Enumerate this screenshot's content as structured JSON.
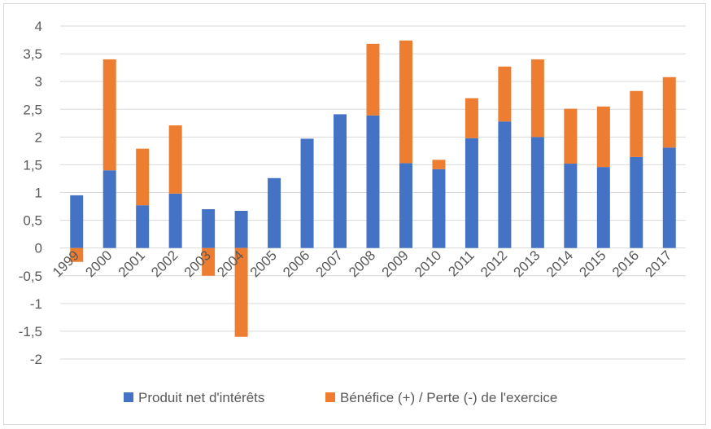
{
  "chart_data": {
    "type": "bar",
    "stacked": true,
    "title": "",
    "xlabel": "",
    "ylabel": "",
    "categories": [
      "1999",
      "2000",
      "2001",
      "2002",
      "2003",
      "2004",
      "2005",
      "2006",
      "2007",
      "2008",
      "2009",
      "2010",
      "2011",
      "2012",
      "2013",
      "2014",
      "2015",
      "2016",
      "2017"
    ],
    "series": [
      {
        "name": "Produit net d'intérêts",
        "color": "#4472c4",
        "values": [
          0.95,
          1.4,
          0.77,
          0.98,
          0.7,
          0.67,
          1.26,
          1.97,
          2.41,
          2.39,
          1.53,
          1.42,
          1.98,
          2.28,
          2.0,
          1.52,
          1.46,
          1.64,
          1.81
        ]
      },
      {
        "name": "Bénéfice (+) / Perte (-) de l'exercice",
        "color": "#ed7d31",
        "values": [
          -0.25,
          2.0,
          1.02,
          1.23,
          -0.5,
          -1.6,
          0,
          0,
          0,
          1.29,
          2.21,
          0.17,
          0.72,
          0.99,
          1.4,
          0.99,
          1.09,
          1.19,
          1.27
        ]
      }
    ],
    "ylim": [
      -2,
      4
    ],
    "yticks": [
      "4",
      "3,5",
      "3",
      "2,5",
      "2",
      "1,5",
      "1",
      "0,5",
      "0",
      "-0,5",
      "-1",
      "-1,5",
      "-2"
    ],
    "ytick_values": [
      4,
      3.5,
      3,
      2.5,
      2,
      1.5,
      1,
      0.5,
      0,
      -0.5,
      -1,
      -1.5,
      -2
    ],
    "grid": true,
    "legend_position": "bottom"
  }
}
